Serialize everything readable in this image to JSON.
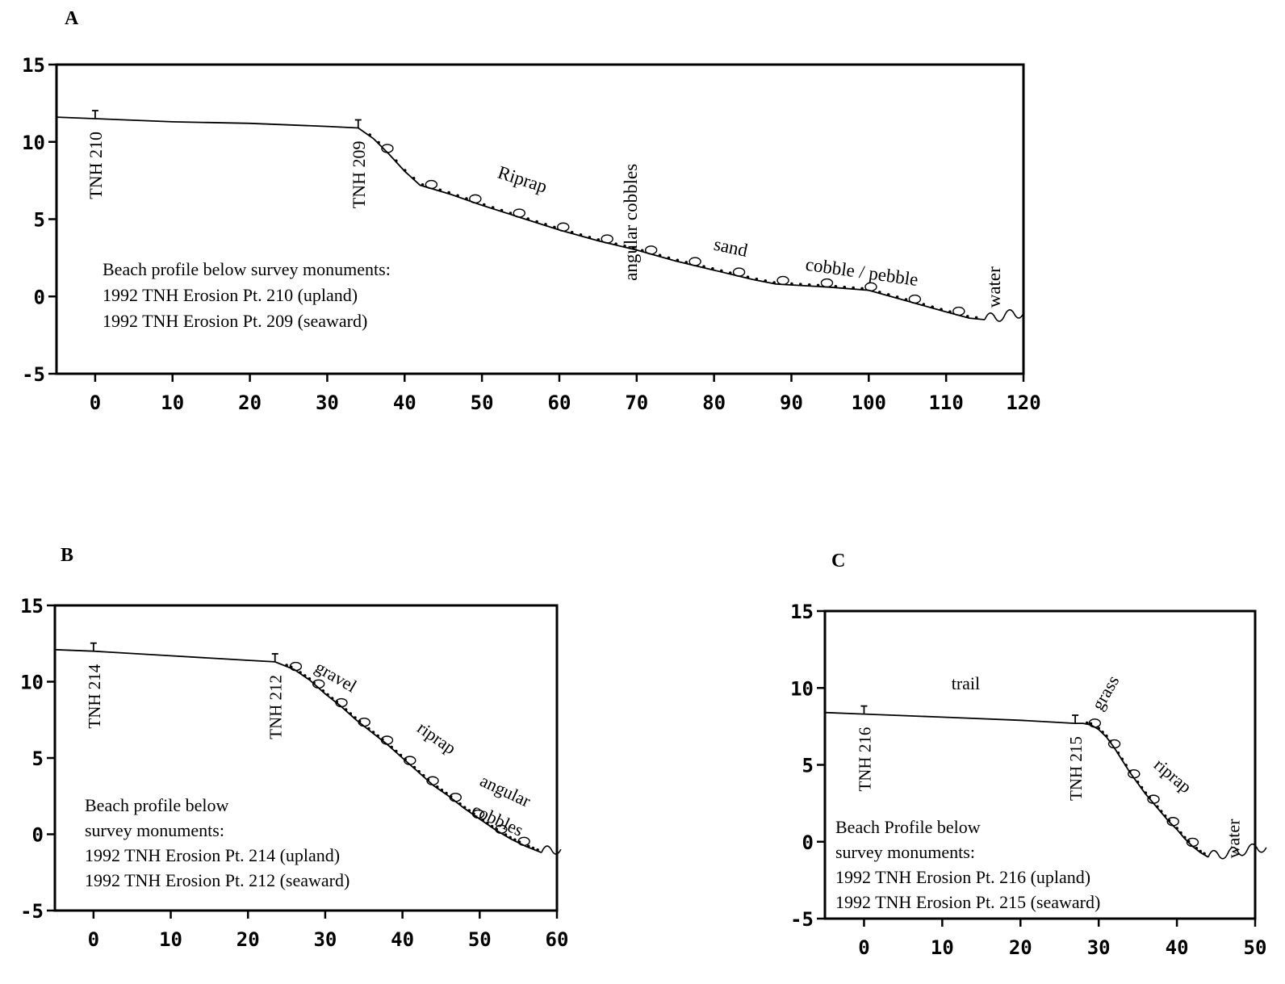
{
  "chart_data": [
    {
      "type": "line",
      "panel_label": "A",
      "xlim": [
        -5,
        120
      ],
      "ylim": [
        -5,
        15
      ],
      "x_ticks": [
        "0",
        "10",
        "20",
        "30",
        "40",
        "50",
        "60",
        "70",
        "80",
        "90",
        "100",
        "110",
        "120"
      ],
      "y_ticks": [
        "15",
        "10",
        "5",
        "0",
        "-5"
      ],
      "profile": {
        "x": [
          -5,
          0,
          10,
          20,
          30,
          34,
          36,
          38,
          40,
          42,
          44,
          46,
          50,
          55,
          60,
          65,
          70,
          75,
          80,
          85,
          88,
          95,
          100,
          105,
          110,
          113,
          115
        ],
        "y": [
          11.6,
          11.5,
          11.3,
          11.2,
          11.0,
          10.9,
          10.2,
          9.2,
          8.1,
          7.2,
          6.9,
          6.6,
          5.9,
          5.1,
          4.3,
          3.6,
          3.0,
          2.3,
          1.7,
          1.1,
          0.8,
          0.6,
          0.4,
          -0.3,
          -1.0,
          -1.4,
          -1.5
        ]
      },
      "monuments": [
        {
          "x": 0,
          "y": 11.5,
          "label": "TNH 210"
        },
        {
          "x": 34,
          "y": 10.9,
          "label": "TNH 209"
        }
      ],
      "annotations": [
        {
          "text": "Riprap",
          "x": 55,
          "y": 7.2,
          "rotate": 18
        },
        {
          "text": "angular cobbles",
          "x": 70,
          "y": 4.8,
          "rotate": -90
        },
        {
          "text": "sand",
          "x": 82,
          "y": 2.8,
          "rotate": 12
        },
        {
          "text": "cobble / pebble",
          "x": 99,
          "y": 1.2,
          "rotate": 8
        },
        {
          "text": "water",
          "x": 117,
          "y": 0.6,
          "rotate": -90
        }
      ],
      "legend_lines": [
        "Beach profile below survey monuments:",
        "1992 TNH Erosion Pt. 210 (upland)",
        "1992 TNH Erosion Pt. 209 (seaward)"
      ]
    },
    {
      "type": "line",
      "panel_label": "B",
      "xlim": [
        -5,
        60
      ],
      "ylim": [
        -5,
        15
      ],
      "x_ticks": [
        "0",
        "10",
        "20",
        "30",
        "40",
        "50",
        "60"
      ],
      "y_ticks": [
        "15",
        "10",
        "5",
        "0",
        "-5"
      ],
      "profile": {
        "x": [
          -5,
          0,
          10,
          20,
          23.5,
          26,
          28,
          30,
          32,
          34,
          36,
          38,
          40,
          42,
          44,
          46,
          48,
          50,
          52,
          54,
          56,
          58
        ],
        "y": [
          12.1,
          12.0,
          11.7,
          11.4,
          11.3,
          10.8,
          10.1,
          9.2,
          8.4,
          7.5,
          6.7,
          5.9,
          5.0,
          4.1,
          3.2,
          2.5,
          1.7,
          1.0,
          0.3,
          -0.3,
          -0.8,
          -1.2
        ]
      },
      "monuments": [
        {
          "x": 0,
          "y": 12.0,
          "label": "TNH 214"
        },
        {
          "x": 23.5,
          "y": 11.3,
          "label": "TNH 212"
        }
      ],
      "annotations": [
        {
          "text": "gravel",
          "x": 31,
          "y": 10.0,
          "rotate": 30
        },
        {
          "text": "riprap",
          "x": 44,
          "y": 6.0,
          "rotate": 35
        },
        {
          "text": "angular",
          "x": 53,
          "y": 2.5,
          "rotate": 25
        },
        {
          "text": "cobbles",
          "x": 52,
          "y": 0.6,
          "rotate": 25
        }
      ],
      "legend_lines": [
        "Beach profile below",
        "survey monuments:",
        "1992 TNH Erosion Pt. 214 (upland)",
        "1992 TNH Erosion Pt. 212 (seaward)"
      ]
    },
    {
      "type": "line",
      "panel_label": "C",
      "xlim": [
        -5,
        50
      ],
      "ylim": [
        -5,
        15
      ],
      "x_ticks": [
        "0",
        "10",
        "20",
        "30",
        "40",
        "50"
      ],
      "y_ticks": [
        "15",
        "10",
        "5",
        "0",
        "-5"
      ],
      "profile": {
        "x": [
          -5,
          0,
          10,
          20,
          27,
          28,
          29,
          30,
          31,
          32,
          33,
          34,
          35,
          36,
          37,
          38,
          39,
          40,
          41,
          42,
          43,
          44
        ],
        "y": [
          8.4,
          8.3,
          8.1,
          7.9,
          7.7,
          7.7,
          7.6,
          7.3,
          6.8,
          6.1,
          5.3,
          4.5,
          3.8,
          3.1,
          2.5,
          1.9,
          1.3,
          0.8,
          0.2,
          -0.3,
          -0.7,
          -1.0
        ]
      },
      "monuments": [
        {
          "x": 0,
          "y": 8.3,
          "label": "TNH 216"
        },
        {
          "x": 27,
          "y": 7.7,
          "label": "TNH 215"
        }
      ],
      "annotations": [
        {
          "text": "trail",
          "x": 13,
          "y": 9.9,
          "rotate": 0
        },
        {
          "text": "grass",
          "x": 31.5,
          "y": 9.5,
          "rotate": -60
        },
        {
          "text": "riprap",
          "x": 39,
          "y": 4.0,
          "rotate": 40
        },
        {
          "text": "water",
          "x": 48,
          "y": 0.2,
          "rotate": -90
        }
      ],
      "legend_lines": [
        "Beach Profile below",
        "survey monuments:",
        "1992 TNH Erosion Pt. 216 (upland)",
        "1992 TNH Erosion Pt. 215 (seaward)"
      ]
    }
  ]
}
